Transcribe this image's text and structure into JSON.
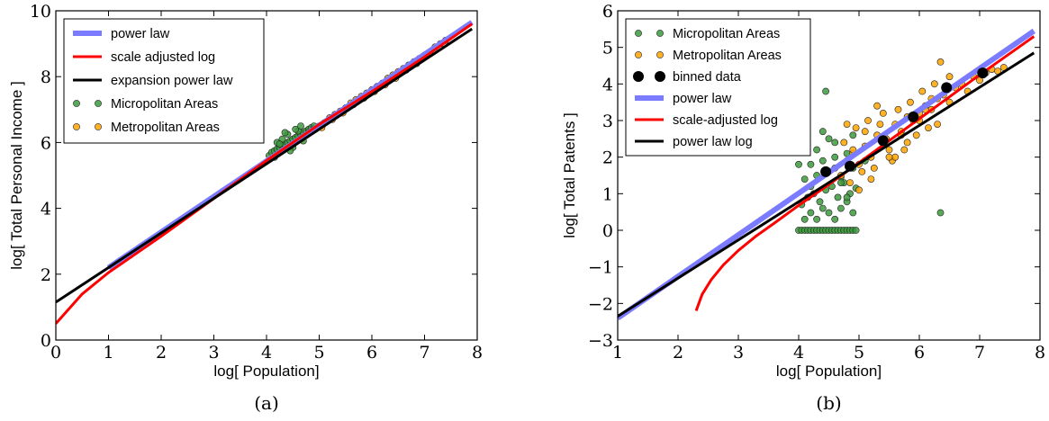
{
  "chart_data": [
    {
      "type": "scatter",
      "panel": "a",
      "caption": "(a)",
      "xlabel": "log[ Population]",
      "ylabel": "log[ Total Personal Income ]",
      "xlim": [
        0,
        8
      ],
      "ylim": [
        0,
        10
      ],
      "xticks": [
        0,
        1,
        2,
        3,
        4,
        5,
        6,
        7,
        8
      ],
      "yticks": [
        0,
        2,
        4,
        6,
        8,
        10
      ],
      "grid": false,
      "legend_position": "top-left",
      "series": [
        {
          "name": "power law",
          "kind": "line",
          "color": "#7b7bff",
          "x": [
            1,
            7.9
          ],
          "y": [
            2.2,
            9.65
          ]
        },
        {
          "name": "scale adjusted log",
          "kind": "line",
          "color": "#ff0000",
          "x": [
            0,
            0.5,
            1.0,
            1.5,
            2.0,
            3.0,
            4.0,
            5.0,
            6.0,
            7.0,
            7.9
          ],
          "y": [
            0.5,
            1.4,
            2.05,
            2.6,
            3.15,
            4.3,
            5.45,
            6.55,
            7.55,
            8.6,
            9.6
          ]
        },
        {
          "name": "expansion power law",
          "kind": "line",
          "color": "#000000",
          "x": [
            0,
            7.9
          ],
          "y": [
            1.15,
            9.45
          ]
        },
        {
          "name": "Micropolitan Areas",
          "kind": "scatter",
          "color": "#3d9a3d",
          "x": [
            4.05,
            4.1,
            4.15,
            4.2,
            4.25,
            4.3,
            4.35,
            4.4,
            4.45,
            4.5,
            4.55,
            4.6,
            4.65,
            4.7,
            4.75,
            4.8,
            4.85,
            4.9,
            4.2,
            4.3,
            4.4,
            4.5,
            4.6,
            4.7,
            4.15,
            4.25,
            4.35,
            4.45,
            4.55,
            4.65
          ],
          "y": [
            5.6,
            5.7,
            5.75,
            5.8,
            5.85,
            5.9,
            5.95,
            6.0,
            6.05,
            6.1,
            6.15,
            6.2,
            6.25,
            6.3,
            6.35,
            6.4,
            6.45,
            6.5,
            6.0,
            6.1,
            6.25,
            5.85,
            6.35,
            6.05,
            5.55,
            5.95,
            6.3,
            5.75,
            6.4,
            6.5
          ]
        },
        {
          "name": "Metropolitan Areas",
          "kind": "scatter",
          "color": "#ffa500",
          "x": [
            4.8,
            4.9,
            5.0,
            5.1,
            5.2,
            5.3,
            5.4,
            5.5,
            5.6,
            5.7,
            5.8,
            5.9,
            6.0,
            6.1,
            6.2,
            6.3,
            6.4,
            6.5,
            6.6,
            6.7,
            6.8,
            6.9,
            7.0,
            7.1,
            7.2,
            7.3,
            7.4,
            5.05,
            5.25,
            5.45,
            5.65,
            5.85,
            6.05,
            6.25,
            6.45,
            6.65,
            6.85
          ],
          "y": [
            6.3,
            6.4,
            6.5,
            6.6,
            6.75,
            6.85,
            6.95,
            7.05,
            7.2,
            7.3,
            7.4,
            7.5,
            7.6,
            7.7,
            7.8,
            7.95,
            8.05,
            8.15,
            8.25,
            8.35,
            8.45,
            8.55,
            8.65,
            8.75,
            8.9,
            9.0,
            9.1,
            6.45,
            6.7,
            6.9,
            7.15,
            7.35,
            7.55,
            7.75,
            7.95,
            8.2,
            8.4
          ]
        }
      ]
    },
    {
      "type": "scatter",
      "panel": "b",
      "caption": "(b)",
      "xlabel": "log[ Population]",
      "ylabel": "log[ Total Patents ]",
      "xlim": [
        1,
        8
      ],
      "ylim": [
        -3,
        6
      ],
      "xticks": [
        1,
        2,
        3,
        4,
        5,
        6,
        7,
        8
      ],
      "yticks": [
        -3,
        -2,
        -1,
        0,
        1,
        2,
        3,
        4,
        5,
        6
      ],
      "grid": false,
      "legend_position": "top-left",
      "series": [
        {
          "name": "Micropolitan Areas",
          "kind": "scatter",
          "color": "#3d9a3d",
          "x": [
            4.0,
            4.05,
            4.1,
            4.15,
            4.2,
            4.25,
            4.3,
            4.35,
            4.4,
            4.45,
            4.5,
            4.55,
            4.6,
            4.65,
            4.7,
            4.75,
            4.8,
            4.85,
            4.9,
            4.95,
            4.1,
            4.2,
            4.3,
            4.4,
            4.5,
            4.6,
            4.7,
            4.8,
            4.9,
            4.05,
            4.15,
            4.25,
            4.35,
            4.45,
            4.55,
            4.65,
            4.75,
            4.85,
            4.95,
            4.1,
            4.3,
            4.5,
            4.7,
            4.9,
            4.2,
            4.4,
            4.6,
            4.8,
            4.45,
            4.6,
            4.3,
            4.5,
            4.7,
            4.9,
            5.1,
            6.35,
            4.8,
            4.0,
            4.2,
            4.4
          ],
          "y": [
            0.0,
            0.0,
            0.0,
            0.0,
            0.0,
            0.0,
            0.0,
            0.0,
            0.0,
            0.0,
            0.0,
            0.0,
            0.0,
            0.0,
            0.0,
            0.0,
            0.0,
            0.0,
            0.0,
            0.0,
            0.3,
            0.48,
            0.3,
            0.6,
            0.48,
            0.3,
            0.6,
            0.78,
            0.48,
            0.7,
            0.9,
            1.0,
            0.78,
            1.1,
            1.2,
            0.9,
            1.3,
            1.0,
            1.15,
            1.4,
            1.5,
            1.6,
            1.45,
            1.7,
            1.8,
            1.9,
            2.0,
            2.1,
            3.8,
            2.4,
            2.2,
            2.5,
            1.3,
            2.6,
            1.9,
            0.48,
            0.9,
            1.8,
            1.2,
            2.7
          ]
        },
        {
          "name": "Metropolitan Areas",
          "kind": "scatter",
          "color": "#ffa500",
          "x": [
            4.6,
            4.7,
            4.8,
            4.9,
            5.0,
            5.1,
            5.2,
            5.3,
            5.4,
            5.5,
            5.6,
            5.7,
            5.8,
            5.9,
            6.0,
            6.1,
            6.2,
            6.3,
            6.4,
            6.5,
            6.6,
            6.7,
            6.8,
            6.9,
            7.0,
            7.1,
            7.2,
            7.3,
            7.4,
            4.75,
            4.85,
            4.95,
            5.05,
            5.15,
            5.25,
            5.35,
            5.45,
            5.55,
            5.65,
            5.75,
            5.85,
            5.95,
            6.05,
            6.15,
            6.25,
            6.35,
            4.8,
            5.0,
            5.2,
            5.4,
            5.6,
            5.8,
            6.0,
            6.2,
            4.9,
            5.1,
            5.3,
            5.5,
            5.7,
            5.9,
            6.1,
            6.3,
            6.5
          ],
          "y": [
            1.7,
            1.5,
            1.9,
            2.1,
            1.8,
            2.3,
            2.0,
            2.6,
            2.4,
            2.2,
            2.9,
            2.7,
            3.1,
            3.0,
            3.2,
            3.4,
            3.3,
            3.6,
            3.7,
            3.5,
            3.9,
            4.0,
            3.8,
            4.2,
            4.1,
            4.3,
            4.4,
            4.35,
            4.45,
            2.4,
            1.3,
            2.8,
            1.6,
            3.0,
            1.7,
            2.9,
            2.5,
            1.9,
            3.3,
            2.2,
            3.5,
            2.6,
            3.8,
            2.8,
            4.0,
            4.6,
            2.9,
            1.1,
            1.4,
            3.2,
            2.0,
            2.4,
            3.0,
            3.6,
            2.2,
            2.7,
            3.4,
            2.0,
            2.6,
            3.1,
            3.3,
            2.9,
            4.2
          ]
        },
        {
          "name": "binned data",
          "kind": "scatter",
          "color": "#000000",
          "x": [
            4.45,
            4.85,
            5.4,
            5.9,
            6.45,
            7.05
          ],
          "y": [
            1.6,
            1.75,
            2.45,
            3.1,
            3.9,
            4.3
          ]
        },
        {
          "name": "power law",
          "kind": "line",
          "color": "#7b7bff",
          "x": [
            1,
            7.9
          ],
          "y": [
            -2.4,
            5.45
          ]
        },
        {
          "name": "scale-adjusted log",
          "kind": "line",
          "color": "#ff0000",
          "x": [
            2.3,
            2.4,
            2.55,
            2.75,
            3.0,
            3.3,
            3.6,
            4.0,
            4.5,
            5.0,
            6.0,
            7.0,
            7.9
          ],
          "y": [
            -2.2,
            -1.75,
            -1.35,
            -0.95,
            -0.55,
            -0.15,
            0.2,
            0.68,
            1.25,
            1.85,
            3.05,
            4.25,
            5.3
          ]
        },
        {
          "name": "power law log",
          "kind": "line",
          "color": "#000000",
          "x": [
            1,
            7.9
          ],
          "y": [
            -2.35,
            4.85
          ]
        }
      ]
    }
  ]
}
